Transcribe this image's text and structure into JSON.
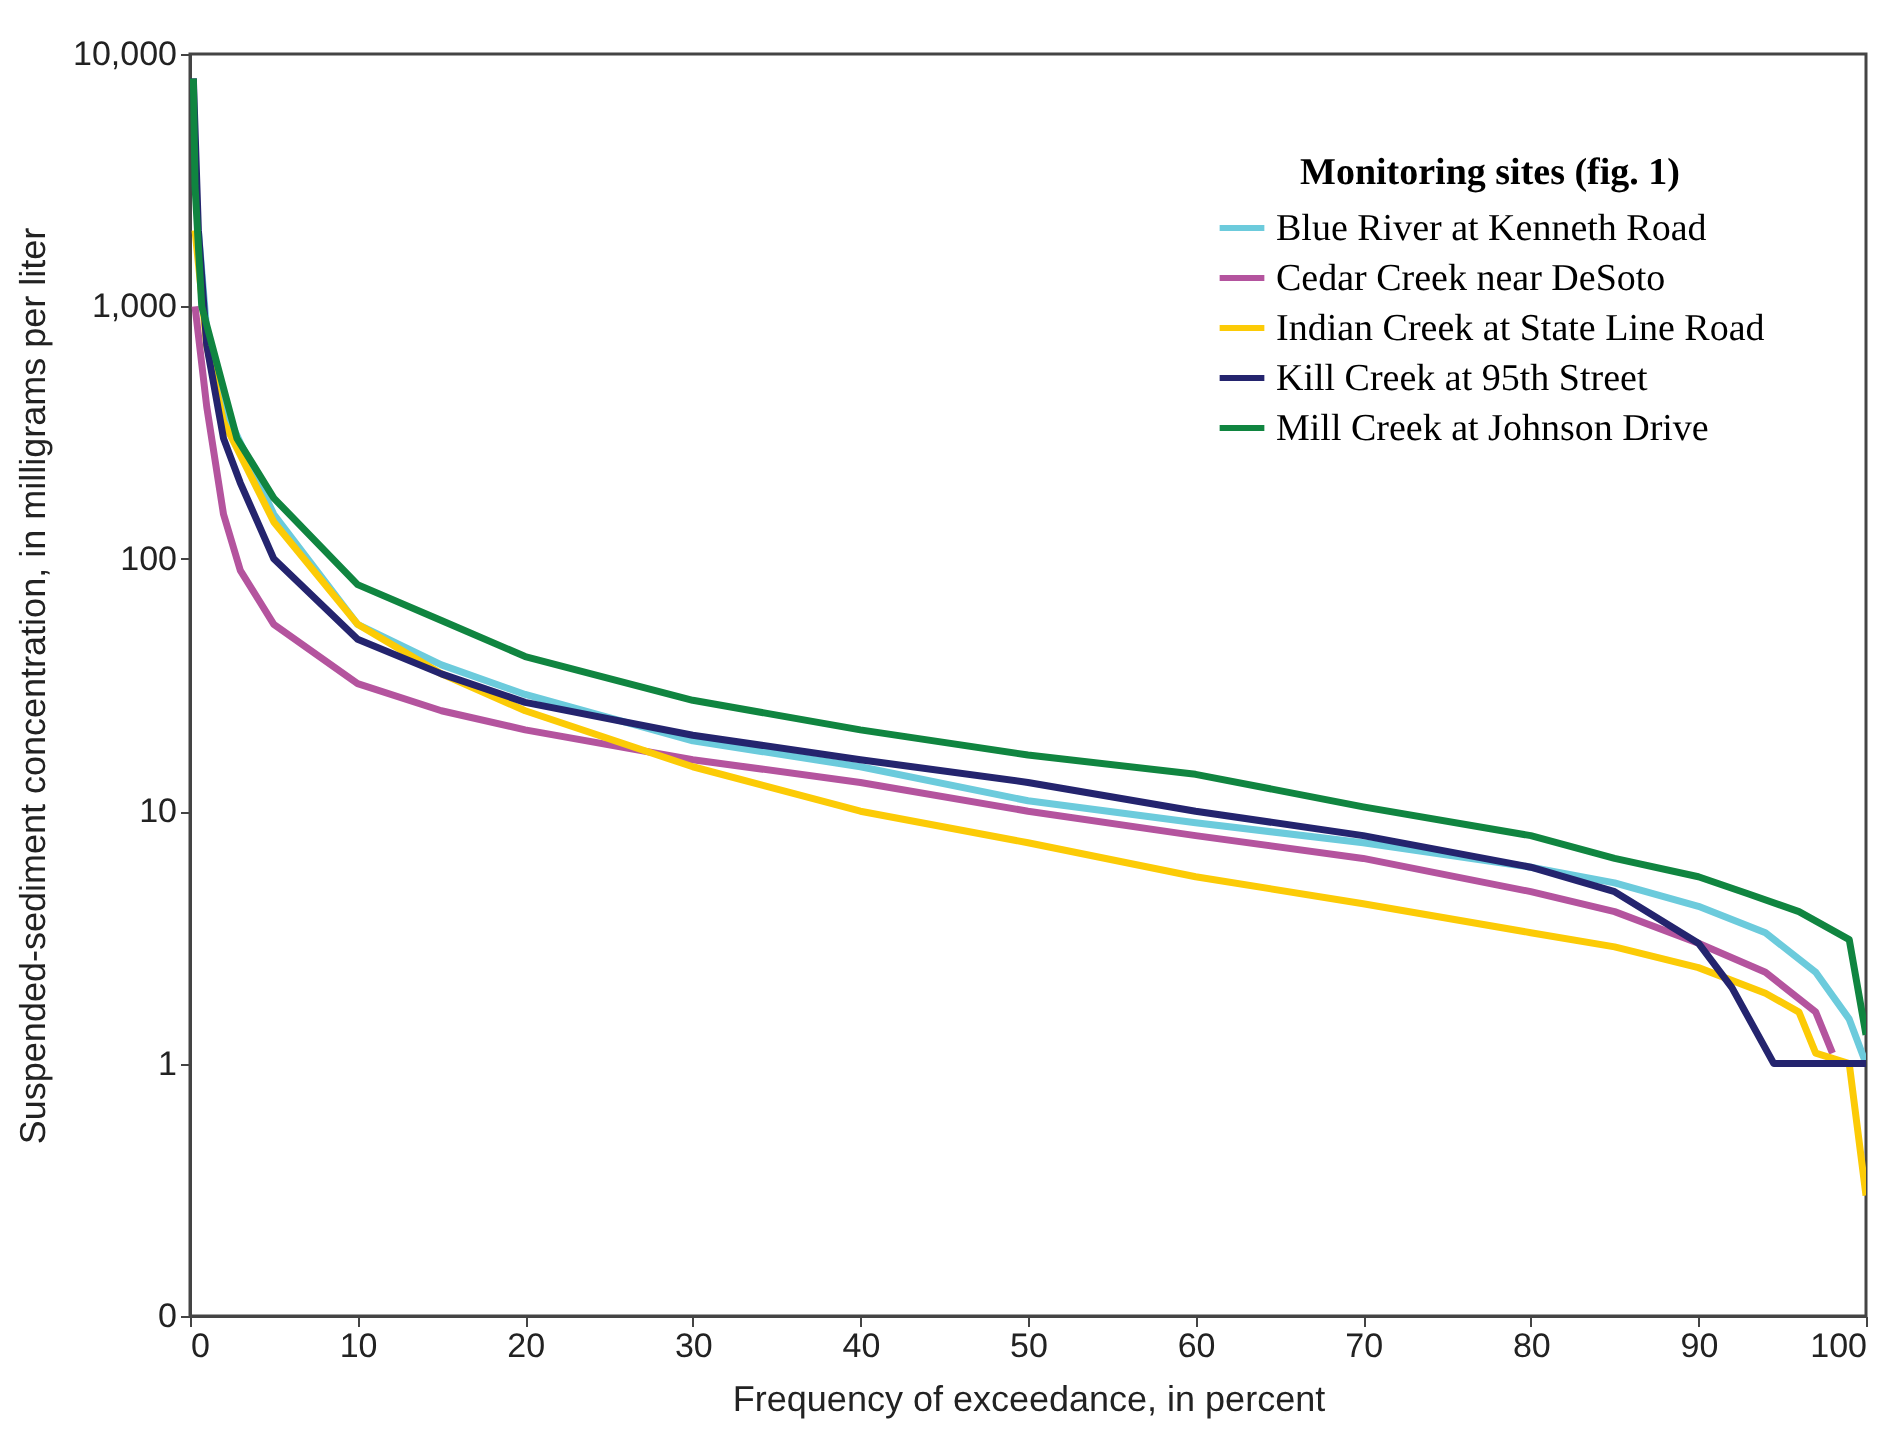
{
  "chart_data": {
    "type": "line",
    "xlabel": "Frequency of exceedance, in percent",
    "ylabel": "Suspended-sediment concentration, in milligrams per liter",
    "legend_title": "Monitoring sites (fig. 1)",
    "legend": "top right",
    "log": true,
    "grid": false,
    "marker": "none",
    "line_style": "solid",
    "xlim": [
      0,
      100
    ],
    "xticks": [
      0,
      10,
      20,
      30,
      40,
      50,
      60,
      70,
      80,
      90,
      100
    ],
    "ylim": [
      0.1,
      10000
    ],
    "yticks": [
      {
        "value": 0.1,
        "label": "0"
      },
      1,
      10,
      100,
      {
        "value": 1000,
        "label": "1,000"
      },
      {
        "value": 10000,
        "label": "10,000"
      }
    ],
    "series": [
      {
        "name": "Blue River at Kenneth Road",
        "color": "#6ccbdc",
        "x": [
          0.5,
          1,
          2,
          5,
          10,
          15,
          20,
          30,
          40,
          50,
          60,
          70,
          80,
          85,
          90,
          94,
          97,
          99,
          100
        ],
        "values": [
          2000,
          800,
          400,
          150,
          55,
          38,
          29,
          19,
          15,
          11,
          9,
          7.5,
          6,
          5.2,
          4.2,
          3.3,
          2.3,
          1.5,
          1
        ]
      },
      {
        "name": "Cedar Creek near DeSoto",
        "color": "#b4549e",
        "x": [
          0.3,
          1,
          2,
          3,
          5,
          10,
          15,
          20,
          30,
          40,
          50,
          60,
          70,
          80,
          85,
          90,
          94,
          97,
          98
        ],
        "values": [
          1000,
          400,
          150,
          90,
          55,
          32,
          25,
          21,
          16,
          13,
          10,
          8,
          6.5,
          4.8,
          4,
          3,
          2.3,
          1.6,
          1.1
        ]
      },
      {
        "name": "Indian Creek at State Line Road",
        "color": "#fccb06",
        "x": [
          0.3,
          1,
          2,
          5,
          10,
          15,
          20,
          30,
          40,
          50,
          60,
          70,
          80,
          85,
          90,
          94,
          96,
          97,
          99,
          100
        ],
        "values": [
          2000,
          700,
          350,
          140,
          55,
          35,
          25,
          15,
          10,
          7.5,
          5.5,
          4.3,
          3.3,
          2.9,
          2.4,
          1.9,
          1.6,
          1.1,
          1,
          0.3
        ]
      },
      {
        "name": "Kill Creek at 95th Street",
        "color": "#24246e",
        "x": [
          0.2,
          0.5,
          1,
          2,
          3,
          5,
          10,
          15,
          20,
          30,
          40,
          50,
          60,
          70,
          80,
          85,
          90,
          92,
          94.5,
          100
        ],
        "values": [
          8000,
          2000,
          700,
          300,
          200,
          100,
          48,
          35,
          27,
          20,
          16,
          13,
          10,
          8,
          6,
          4.8,
          3,
          2,
          1,
          1
        ]
      },
      {
        "name": "Mill Creek at Johnson Drive",
        "color": "#108540",
        "x": [
          0.2,
          0.3,
          0.7,
          2.8,
          5,
          10,
          15,
          20,
          30,
          40,
          50,
          60,
          70,
          80,
          85,
          90,
          93,
          96,
          99,
          100
        ],
        "values": [
          8000,
          3000,
          1000,
          300,
          174,
          79,
          57,
          41,
          27.5,
          21,
          16.7,
          14,
          10.4,
          8,
          6.5,
          5.5,
          4.7,
          4,
          3.1,
          1.3
        ]
      }
    ]
  }
}
